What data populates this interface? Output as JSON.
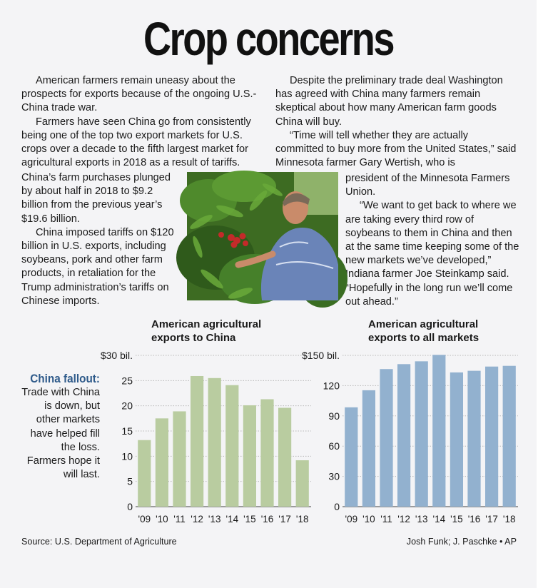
{
  "title": "Crop concerns",
  "article": {
    "left_top": [
      "American farmers remain uneasy about the prospects for exports because of the ongoing U.S.-China trade war.",
      "Farmers have seen China go from consistently being one of the top two export markets for U.S. crops over a decade to the fifth largest market for agricultural exports in 2018 as a result of tariffs."
    ],
    "left_narrow": [
      "China’s farm purchases plunged by about half in 2018 to $9.2 billion from the previous year’s $19.6 billion.",
      "China imposed tariffs on $120 billion in U.S. exports, including soybeans, pork and other farm products, in retaliation for the Trump administration’s tariffs on Chinese imports."
    ],
    "right_top": [
      "Despite the preliminary trade deal Washington has agreed with China many farmers remain skeptical about how many American farm goods China will buy.",
      "“Time will tell whether they are actually committed to buy more from the United States,” said Minnesota farmer Gary Wertish, who is"
    ],
    "right_narrow_first": "president of the Minnesota Farmers Union.",
    "right_narrow": [
      "“We want to get back to where we are taking every third row of soybeans to them in China and then at the same time keeping some of the new markets we’ve developed,” Indiana farmer Joe Steinkamp said. “Hopefully in the long run we’ll come out ahead.”"
    ]
  },
  "sidebar": {
    "heading": "China fallout:",
    "text": "Trade with China is down, but other markets have helped fill the loss. Farmers hope it will last."
  },
  "chart_data": [
    {
      "type": "bar",
      "title": "American agricultural exports to China",
      "categories": [
        "'09",
        "'10",
        "'11",
        "'12",
        "'13",
        "'14",
        "'15",
        "'16",
        "'17",
        "'18"
      ],
      "values": [
        13.2,
        17.5,
        18.9,
        25.9,
        25.5,
        24.1,
        20.1,
        21.3,
        19.6,
        9.2
      ],
      "yticks": [
        0,
        5,
        10,
        15,
        20,
        25,
        30
      ],
      "ytick_labels": [
        "0",
        "5",
        "10",
        "15",
        "20",
        "25",
        "$30 bil."
      ],
      "ylim": [
        0,
        30
      ],
      "color": "#b9cca0",
      "grid": true
    },
    {
      "type": "bar",
      "title": "American agricultural exports to all markets",
      "categories": [
        "'09",
        "'10",
        "'11",
        "'12",
        "'13",
        "'14",
        "'15",
        "'16",
        "'17",
        "'18"
      ],
      "values": [
        98.5,
        115.4,
        136.4,
        141.3,
        144.1,
        150.5,
        133.1,
        134.7,
        138.9,
        139.6
      ],
      "yticks": [
        0,
        30,
        60,
        90,
        120,
        150
      ],
      "ytick_labels": [
        "0",
        "30",
        "60",
        "90",
        "120",
        "$150 bil."
      ],
      "ylim": [
        0,
        150
      ],
      "color": "#92b1cf",
      "grid": true
    }
  ],
  "footer": {
    "source": "Source: U.S. Department of Agriculture",
    "credit": "Josh Funk; J. Paschke • AP"
  }
}
